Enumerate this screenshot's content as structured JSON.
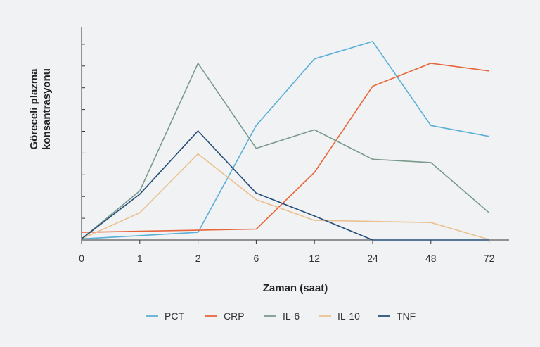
{
  "chart_data": {
    "type": "line",
    "xlabel": "Zaman (saat)",
    "ylabel_lines": [
      "Göreceli plazma",
      "konsantrasyonu"
    ],
    "categories": [
      "0",
      "1",
      "2",
      "6",
      "12",
      "24",
      "48",
      "72"
    ],
    "ylim": [
      0,
      10
    ],
    "grid": false,
    "legend_position": "bottom",
    "series": [
      {
        "name": "PCT",
        "color": "#5aafd6",
        "values": [
          0.05,
          0.2,
          0.35,
          5.25,
          8.3,
          9.1,
          5.25,
          4.75
        ]
      },
      {
        "name": "CRP",
        "color": "#e8653a",
        "values": [
          0.35,
          0.4,
          0.45,
          0.5,
          3.1,
          7.05,
          8.1,
          7.75
        ]
      },
      {
        "name": "IL-6",
        "color": "#7a9a8b",
        "values": [
          0.05,
          2.25,
          8.1,
          4.2,
          5.05,
          3.7,
          3.55,
          1.25
        ]
      },
      {
        "name": "IL-10",
        "color": "#ebc090",
        "values": [
          0.05,
          1.25,
          3.95,
          1.85,
          0.9,
          0.85,
          0.8,
          0.02
        ]
      },
      {
        "name": "TNF",
        "color": "#244c78",
        "values": [
          0.05,
          2.1,
          5.0,
          2.15,
          1.1,
          0.0,
          0.0,
          0.0
        ]
      }
    ]
  }
}
